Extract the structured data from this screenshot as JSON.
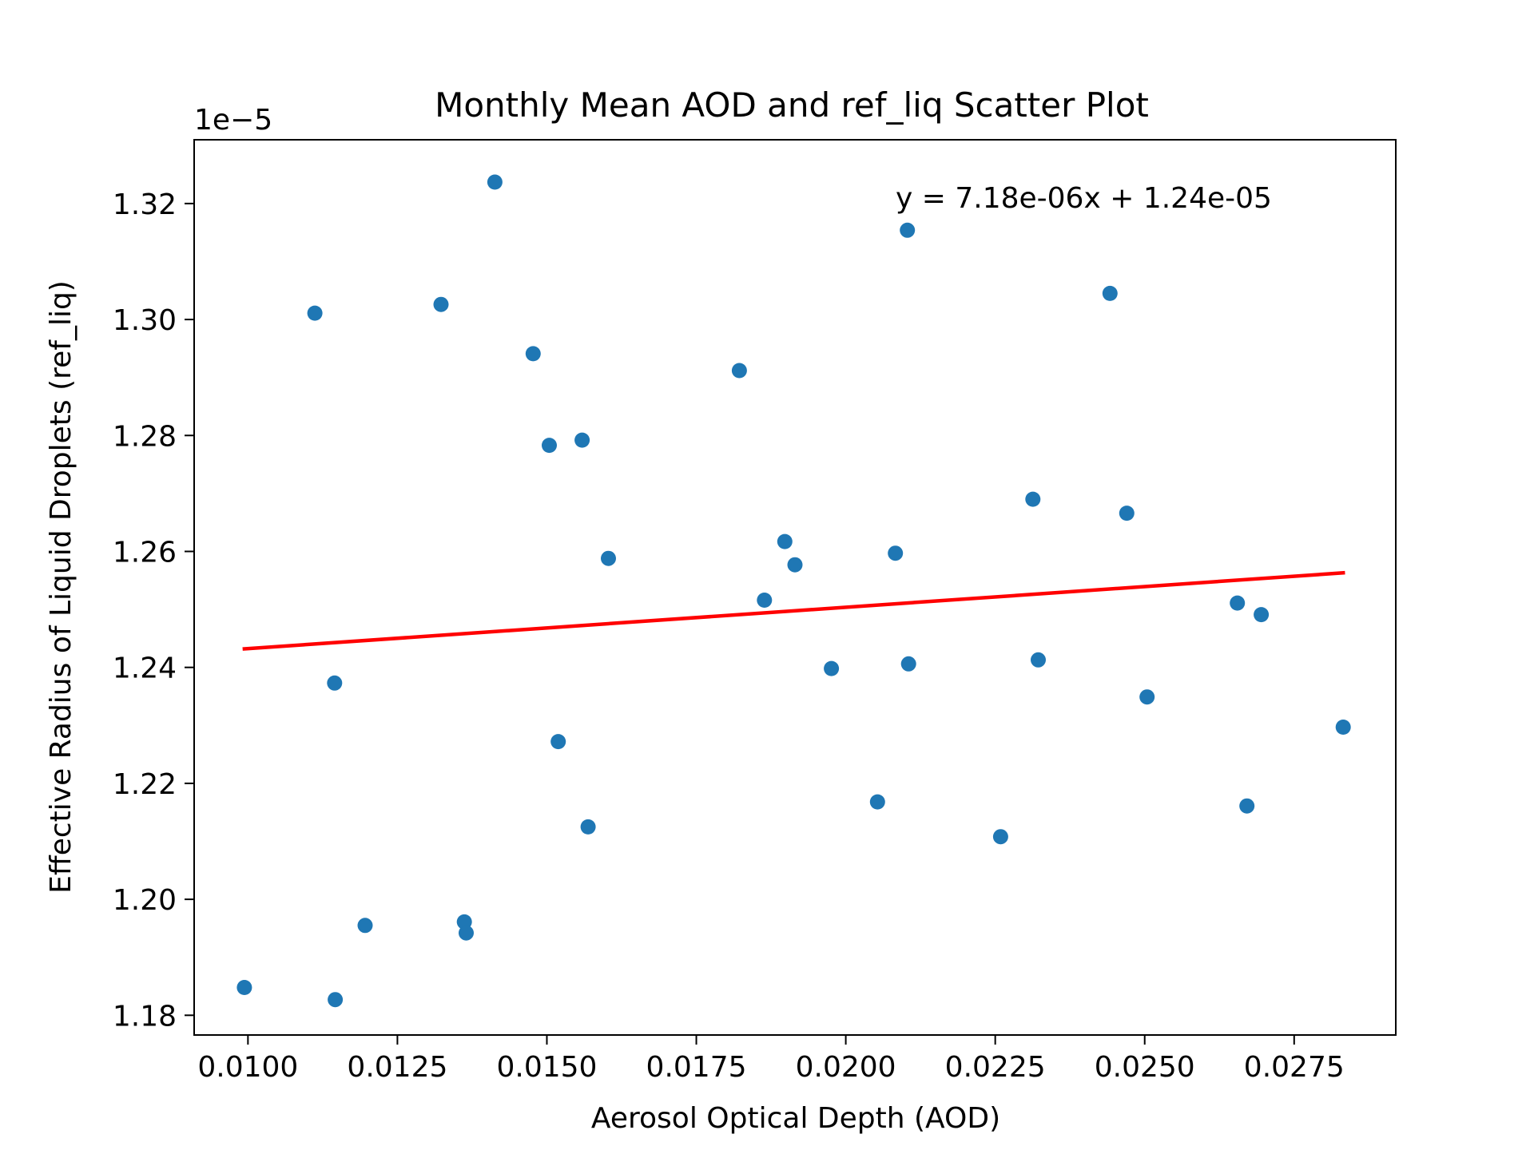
{
  "chart_data": {
    "type": "scatter",
    "title": "Monthly Mean AOD and ref_liq Scatter Plot",
    "xlabel": "Aerosol Optical Depth (AOD)",
    "ylabel": "Effective Radius of Liquid Droplets (ref_liq)",
    "y_offset_label": "1e−5",
    "annotation": "y = 7.18e-06x + 1.24e-05",
    "xlim": [
      0.0091,
      0.0292
    ],
    "ylim": [
      1.1766e-05,
      1.331e-05
    ],
    "xticks": [
      0.01,
      0.0125,
      0.015,
      0.0175,
      0.02,
      0.0225,
      0.025,
      0.0275
    ],
    "xtick_labels": [
      "0.0100",
      "0.0125",
      "0.0150",
      "0.0175",
      "0.0200",
      "0.0225",
      "0.0250",
      "0.0275"
    ],
    "yticks": [
      1.18e-05,
      1.2e-05,
      1.22e-05,
      1.24e-05,
      1.26e-05,
      1.28e-05,
      1.3e-05,
      1.32e-05
    ],
    "ytick_labels": [
      "1.18",
      "1.20",
      "1.22",
      "1.24",
      "1.26",
      "1.28",
      "1.30",
      "1.32"
    ],
    "grid": false,
    "point_color": "#1f77b4",
    "fit_line_color": "#ff0000",
    "series": [
      {
        "x": [
          0.01413,
          0.02103,
          0.01112,
          0.01323,
          0.02442,
          0.01477,
          0.01822,
          0.01504,
          0.01559,
          0.02313,
          0.0247,
          0.01898,
          0.01603,
          0.02083,
          0.01915,
          0.01864,
          0.02655,
          0.02695,
          0.01145,
          0.01976,
          0.02105,
          0.02322,
          0.02504,
          0.02832,
          0.01519,
          0.01569,
          0.02053,
          0.02671,
          0.02259,
          0.01196,
          0.01362,
          0.01365,
          0.00994,
          0.01146
        ],
        "y": [
          1.3237e-05,
          1.3154e-05,
          1.3011e-05,
          1.3026e-05,
          1.3045e-05,
          1.2941e-05,
          1.2912e-05,
          1.2783e-05,
          1.2792e-05,
          1.269e-05,
          1.2666e-05,
          1.2617e-05,
          1.2588e-05,
          1.2597e-05,
          1.2577e-05,
          1.2516e-05,
          1.2511e-05,
          1.2491e-05,
          1.2373e-05,
          1.2398e-05,
          1.2406e-05,
          1.2413e-05,
          1.2349e-05,
          1.2297e-05,
          1.2272e-05,
          1.2125e-05,
          1.2168e-05,
          1.2161e-05,
          1.2108e-05,
          1.1955e-05,
          1.1961e-05,
          1.1942e-05,
          1.1848e-05,
          1.1827e-05
        ]
      }
    ],
    "fit_line": {
      "x": [
        0.00994,
        0.02832
      ],
      "y": [
        1.2432e-05,
        1.2563e-05
      ]
    }
  }
}
